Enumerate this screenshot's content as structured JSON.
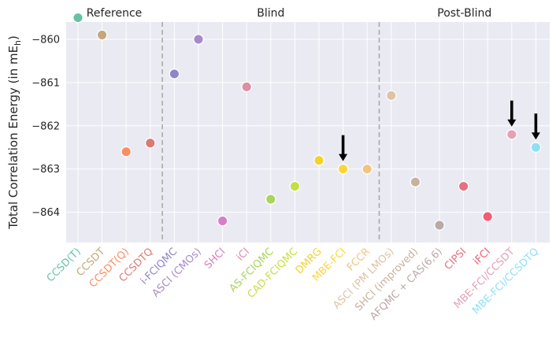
{
  "chart_data": {
    "type": "scatter",
    "title": "",
    "ylabel": {
      "main": "Total Correlation Energy (in mE",
      "sub": "h",
      "close": ")"
    },
    "ylim": [
      -864.7,
      -859.6
    ],
    "yticks": [
      -864,
      -863,
      -862,
      -861,
      -860
    ],
    "ytick_labels": [
      "−864",
      "−863",
      "−862",
      "−861",
      "−860"
    ],
    "sections": [
      {
        "label": "Reference",
        "start": 0,
        "end": 3
      },
      {
        "label": "Blind",
        "start": 4,
        "end": 12
      },
      {
        "label": "Post-Blind",
        "start": 13,
        "end": 19
      }
    ],
    "categories": [
      "CCSD(T)",
      "CCSDT",
      "CCSDT(Q)",
      "CCSDTQ",
      "i-FCIQMC",
      "ASCI (CMOs)",
      "SHCI",
      "iCI",
      "AS-FCIQMC",
      "CAD-FCIQMC",
      "DMRG",
      "MBE-FCI",
      "FCCR",
      "ASCI (PM LMOs)",
      "SHCI (improved)",
      "AFQMC + CAS(6,6)",
      "CIPSI",
      "iFCI",
      "MBE-FCI/CCSDT",
      "MBE-FCI/CCSDTQ"
    ],
    "values": [
      -859.5,
      -859.9,
      -862.6,
      -862.4,
      -860.8,
      -860.0,
      -864.2,
      -861.1,
      -863.7,
      -863.4,
      -862.8,
      -863.0,
      -863.0,
      -861.3,
      -863.3,
      -864.3,
      -863.4,
      -864.1,
      -862.2,
      -862.5
    ],
    "colors": [
      "#66c2a5",
      "#c4a87a",
      "#fc8d62",
      "#d97b75",
      "#8e87c6",
      "#a68bc8",
      "#d77ec8",
      "#dd8fa5",
      "#a8d55a",
      "#c5de45",
      "#f1d32c",
      "#fdd43b",
      "#f2c47f",
      "#dfc3a4",
      "#c7b29e",
      "#b8aaa6",
      "#e37383",
      "#f25b72",
      "#e3a2b5",
      "#8fe0f7"
    ],
    "arrows": [
      11,
      18,
      19
    ]
  }
}
